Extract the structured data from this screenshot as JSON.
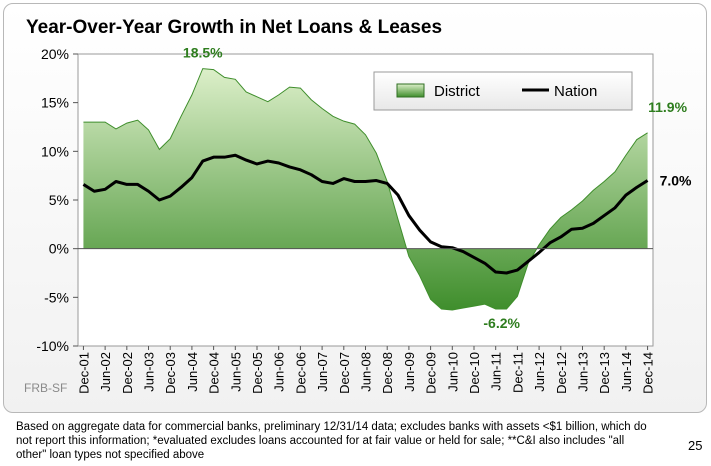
{
  "footnote": "Based on aggregate data for commercial banks, preliminary 12/31/14 data; excludes banks with assets <$1 billion, which do not report this information; *evaluated excludes loans accounted for at fair value or held for sale; **C&I also includes \"all other\" loan types not specified above",
  "page_number": "25",
  "watermark": "FRB-SF",
  "colors": {
    "district_dark": "#3f8e2c",
    "district_light": "#dcefc9",
    "nation_line": "#000000",
    "annotation_green": "#2e7d1e"
  },
  "chart_data": {
    "type": "area",
    "title": "Year-Over-Year Growth in Net Loans & Leases",
    "xlabel": "",
    "ylabel": "",
    "ylim": [
      -10,
      20
    ],
    "yticks": [
      -10,
      -5,
      0,
      5,
      10,
      15,
      20
    ],
    "ytick_labels": [
      "-10%",
      "-5%",
      "0%",
      "5%",
      "10%",
      "15%",
      "20%"
    ],
    "grid": false,
    "legend_position": "top-right",
    "x_tick_labels": [
      "Dec-01",
      "Jun-02",
      "Dec-02",
      "Jun-03",
      "Dec-03",
      "Jun-04",
      "Dec-04",
      "Jun-05",
      "Dec-05",
      "Jun-06",
      "Dec-06",
      "Jun-07",
      "Dec-07",
      "Jun-08",
      "Dec-08",
      "Jun-09",
      "Dec-09",
      "Jun-10",
      "Dec-10",
      "Jun-11",
      "Dec-11",
      "Jun-12",
      "Dec-12",
      "Jun-13",
      "Dec-13",
      "Jun-14",
      "Dec-14"
    ],
    "x": [
      "Dec-01",
      "Mar-02",
      "Jun-02",
      "Sep-02",
      "Dec-02",
      "Mar-03",
      "Jun-03",
      "Sep-03",
      "Dec-03",
      "Mar-04",
      "Jun-04",
      "Sep-04",
      "Dec-04",
      "Mar-05",
      "Jun-05",
      "Sep-05",
      "Dec-05",
      "Mar-06",
      "Jun-06",
      "Sep-06",
      "Dec-06",
      "Mar-07",
      "Jun-07",
      "Sep-07",
      "Dec-07",
      "Mar-08",
      "Jun-08",
      "Sep-08",
      "Dec-08",
      "Mar-09",
      "Jun-09",
      "Sep-09",
      "Dec-09",
      "Mar-10",
      "Jun-10",
      "Sep-10",
      "Dec-10",
      "Mar-11",
      "Jun-11",
      "Sep-11",
      "Dec-11",
      "Mar-12",
      "Jun-12",
      "Sep-12",
      "Dec-12",
      "Mar-13",
      "Jun-13",
      "Sep-13",
      "Dec-13",
      "Mar-14",
      "Jun-14",
      "Sep-14",
      "Dec-14"
    ],
    "series": [
      {
        "name": "District",
        "type": "area",
        "values": [
          13.0,
          13.0,
          13.0,
          12.3,
          12.9,
          13.2,
          12.2,
          10.2,
          11.3,
          13.6,
          15.8,
          18.5,
          18.4,
          17.6,
          17.4,
          16.1,
          15.6,
          15.1,
          15.8,
          16.6,
          16.5,
          15.3,
          14.4,
          13.6,
          13.1,
          12.8,
          11.7,
          9.8,
          6.9,
          3.0,
          -0.8,
          -2.8,
          -5.2,
          -6.2,
          -6.3,
          -6.1,
          -5.9,
          -5.7,
          -6.2,
          -6.2,
          -4.9,
          -1.5,
          0.4,
          2.0,
          3.2,
          4.0,
          4.9,
          6.0,
          6.9,
          7.9,
          9.6,
          11.2,
          11.9
        ]
      },
      {
        "name": "Nation",
        "type": "line",
        "values": [
          6.6,
          5.9,
          6.1,
          6.9,
          6.6,
          6.6,
          5.9,
          5.0,
          5.4,
          6.3,
          7.3,
          9.0,
          9.4,
          9.4,
          9.6,
          9.1,
          8.7,
          9.0,
          8.8,
          8.4,
          8.1,
          7.6,
          6.9,
          6.7,
          7.2,
          6.9,
          6.9,
          7.0,
          6.7,
          5.5,
          3.4,
          1.9,
          0.7,
          0.2,
          0.1,
          -0.3,
          -0.9,
          -1.5,
          -2.4,
          -2.5,
          -2.2,
          -1.3,
          -0.4,
          0.6,
          1.2,
          2.0,
          2.1,
          2.6,
          3.4,
          4.2,
          5.5,
          6.3,
          7.0
        ]
      }
    ],
    "annotations": [
      {
        "label": "18.5%",
        "series": "District",
        "x": "Sep-04",
        "value": 18.5
      },
      {
        "label": "-6.2%",
        "series": "District",
        "x": "Jun-11",
        "value": -6.2
      },
      {
        "label": "11.9%",
        "series": "District",
        "x": "Dec-14",
        "value": 11.9
      },
      {
        "label": "7.0%",
        "series": "Nation",
        "x": "Dec-14",
        "value": 7.0
      }
    ]
  }
}
